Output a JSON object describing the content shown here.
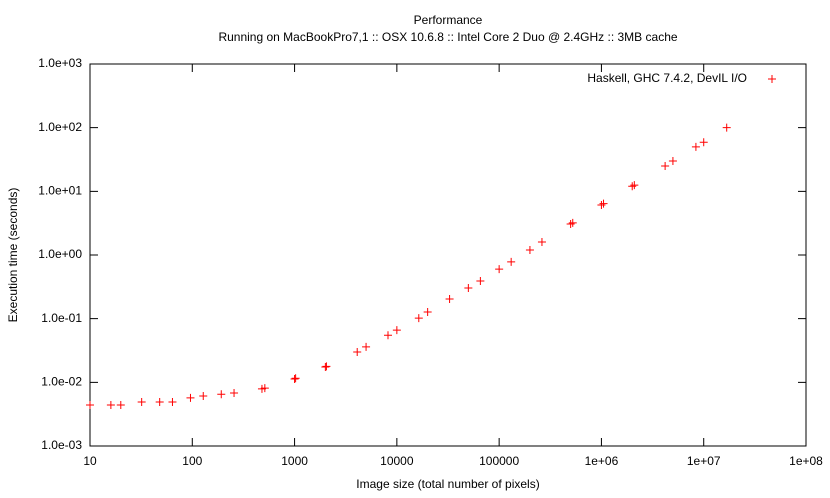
{
  "chart_data": {
    "type": "scatter",
    "title": "Performance",
    "subtitle": "Running on MacBookPro7,1 :: OSX 10.6.8 :: Intel Core 2 Duo @ 2.4GHz :: 3MB cache",
    "x_label": "Image size (total number of pixels)",
    "y_label": "Execution time (seconds)",
    "log_x": true,
    "log_y": true,
    "legend": "top-right",
    "xlim": [
      10,
      100000000
    ],
    "xticks": [
      10,
      100,
      1000,
      10000,
      100000,
      {
        "value": 1000000,
        "label": "1e+06"
      },
      {
        "value": 10000000,
        "label": "1e+07"
      },
      {
        "value": 100000000,
        "label": "1e+08"
      }
    ],
    "ylim": [
      0.001,
      1000
    ],
    "yticks": [
      {
        "value": 0.001,
        "label": "1.0e-03"
      },
      {
        "value": 0.01,
        "label": "1.0e-02"
      },
      {
        "value": 0.1,
        "label": "1.0e-01"
      },
      {
        "value": 1,
        "label": "1.0e+00"
      },
      {
        "value": 10,
        "label": "1.0e+01"
      },
      {
        "value": 100,
        "label": "1.0e+02"
      },
      {
        "value": 1000,
        "label": "1.0e+03"
      }
    ],
    "series": [
      {
        "name": "Haskell, GHC 7.4.2, DevIL I/O",
        "color": "#ff0000",
        "x": [
          10,
          16,
          20,
          32,
          48,
          64,
          96,
          128,
          192,
          256,
          480,
          512,
          1000,
          1024,
          2000,
          2048,
          4096,
          5000,
          8192,
          10000,
          16384,
          20000,
          32768,
          50000,
          65536,
          100000,
          131072,
          200000,
          262144,
          500000,
          524288,
          1000000,
          1048576,
          2000000,
          2097152,
          4194304,
          5000000,
          8388608,
          10000000,
          16777216
        ],
        "values": [
          0.0044,
          0.0044,
          0.0044,
          0.0049,
          0.0049,
          0.0049,
          0.0057,
          0.0061,
          0.0065,
          0.0068,
          0.0079,
          0.0081,
          0.0113,
          0.0116,
          0.0174,
          0.0178,
          0.03,
          0.036,
          0.055,
          0.066,
          0.102,
          0.127,
          0.204,
          0.303,
          0.39,
          0.6,
          0.78,
          1.2,
          1.6,
          3.07,
          3.2,
          6.1,
          6.4,
          12,
          12.5,
          25,
          30,
          50,
          59,
          100
        ]
      }
    ]
  }
}
